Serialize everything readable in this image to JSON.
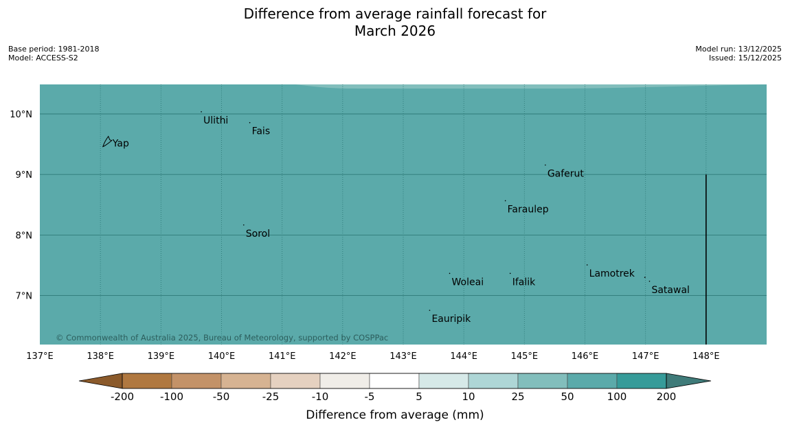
{
  "title": {
    "line1": "Difference from average rainfall forecast for",
    "line2": "March 2026"
  },
  "meta": {
    "base_period": "Base period: 1981-2018",
    "model": "Model: ACCESS-S2",
    "model_run": "Model run: 13/12/2025",
    "issued": "Issued: 15/12/2025"
  },
  "map": {
    "longitude_labels": [
      "137°E",
      "138°E",
      "139°E",
      "140°E",
      "141°E",
      "142°E",
      "143°E",
      "144°E",
      "145°E",
      "146°E",
      "147°E",
      "148°E"
    ],
    "latitude_labels": [
      "10°N",
      "9°N",
      "8°N",
      "7°N"
    ],
    "places": [
      {
        "name": "Yap",
        "lon": 138.2,
        "lat": 9.52
      },
      {
        "name": "Ulithi",
        "lon": 139.7,
        "lat": 9.9
      },
      {
        "name": "Fais",
        "lon": 140.5,
        "lat": 9.72
      },
      {
        "name": "Gaferut",
        "lon": 145.38,
        "lat": 9.02
      },
      {
        "name": "Faraulep",
        "lon": 144.72,
        "lat": 8.43
      },
      {
        "name": "Sorol",
        "lon": 140.4,
        "lat": 8.03
      },
      {
        "name": "Lamotrek",
        "lon": 146.07,
        "lat": 7.37
      },
      {
        "name": "Woleai",
        "lon": 143.8,
        "lat": 7.23
      },
      {
        "name": "Ifalik",
        "lon": 144.8,
        "lat": 7.23
      },
      {
        "name": "Satawal",
        "lon": 147.1,
        "lat": 7.1
      },
      {
        "name": "Eauripik",
        "lon": 143.47,
        "lat": 6.62
      }
    ],
    "copyright": "© Commonwealth of Australia 2025, Bureau of Meteorology, supported by COSPPac",
    "fill_category": "50 to 100 mm"
  },
  "colors": {
    "ocean_fill": "#5BAAAA",
    "light_band": "#82BEBC",
    "grid_line": "#2E7A78"
  },
  "colorbar": {
    "labels": [
      "-200",
      "-100",
      "-50",
      "-25",
      "-10",
      "-5",
      "5",
      "10",
      "25",
      "50",
      "100",
      "200"
    ],
    "colors": [
      "#8B5A2B",
      "#B07840",
      "#C39268",
      "#D6B392",
      "#E5D1C0",
      "#F0EDE8",
      "#FFFFFF",
      "#D6E9E8",
      "#AED6D6",
      "#82BEBC",
      "#5BAAAA",
      "#369B99",
      "#3F7B79"
    ],
    "title": "Difference from average (mm)"
  }
}
